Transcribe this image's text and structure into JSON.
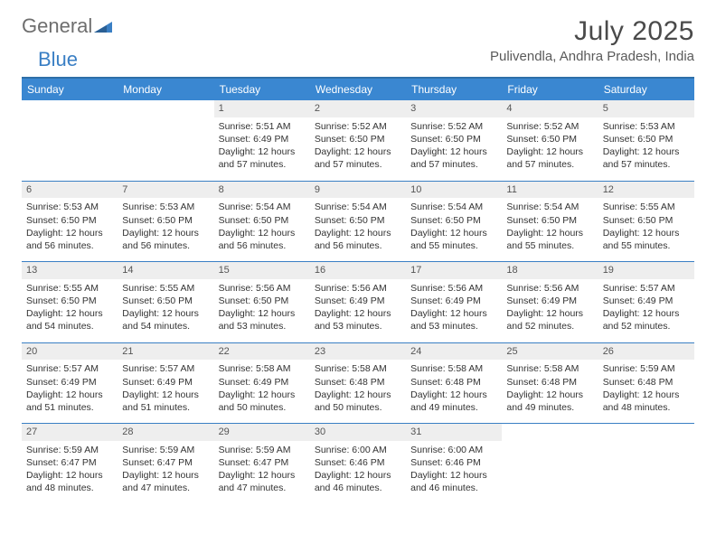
{
  "brand": {
    "word1": "General",
    "word2": "Blue"
  },
  "title": "July 2025",
  "location": "Pulivendla, Andhra Pradesh, India",
  "colors": {
    "header_bg": "#3a87d1",
    "border": "#3a7fc4",
    "daynum_bg": "#eeeeee",
    "logo_gray": "#6e6e6e",
    "logo_blue": "#3a7fc4",
    "text": "#333333"
  },
  "weekdays": [
    "Sunday",
    "Monday",
    "Tuesday",
    "Wednesday",
    "Thursday",
    "Friday",
    "Saturday"
  ],
  "weeks": [
    [
      {
        "empty": true
      },
      {
        "empty": true
      },
      {
        "n": "1",
        "sunrise": "5:51 AM",
        "sunset": "6:49 PM",
        "daylight": "12 hours and 57 minutes."
      },
      {
        "n": "2",
        "sunrise": "5:52 AM",
        "sunset": "6:50 PM",
        "daylight": "12 hours and 57 minutes."
      },
      {
        "n": "3",
        "sunrise": "5:52 AM",
        "sunset": "6:50 PM",
        "daylight": "12 hours and 57 minutes."
      },
      {
        "n": "4",
        "sunrise": "5:52 AM",
        "sunset": "6:50 PM",
        "daylight": "12 hours and 57 minutes."
      },
      {
        "n": "5",
        "sunrise": "5:53 AM",
        "sunset": "6:50 PM",
        "daylight": "12 hours and 57 minutes."
      }
    ],
    [
      {
        "n": "6",
        "sunrise": "5:53 AM",
        "sunset": "6:50 PM",
        "daylight": "12 hours and 56 minutes."
      },
      {
        "n": "7",
        "sunrise": "5:53 AM",
        "sunset": "6:50 PM",
        "daylight": "12 hours and 56 minutes."
      },
      {
        "n": "8",
        "sunrise": "5:54 AM",
        "sunset": "6:50 PM",
        "daylight": "12 hours and 56 minutes."
      },
      {
        "n": "9",
        "sunrise": "5:54 AM",
        "sunset": "6:50 PM",
        "daylight": "12 hours and 56 minutes."
      },
      {
        "n": "10",
        "sunrise": "5:54 AM",
        "sunset": "6:50 PM",
        "daylight": "12 hours and 55 minutes."
      },
      {
        "n": "11",
        "sunrise": "5:54 AM",
        "sunset": "6:50 PM",
        "daylight": "12 hours and 55 minutes."
      },
      {
        "n": "12",
        "sunrise": "5:55 AM",
        "sunset": "6:50 PM",
        "daylight": "12 hours and 55 minutes."
      }
    ],
    [
      {
        "n": "13",
        "sunrise": "5:55 AM",
        "sunset": "6:50 PM",
        "daylight": "12 hours and 54 minutes."
      },
      {
        "n": "14",
        "sunrise": "5:55 AM",
        "sunset": "6:50 PM",
        "daylight": "12 hours and 54 minutes."
      },
      {
        "n": "15",
        "sunrise": "5:56 AM",
        "sunset": "6:50 PM",
        "daylight": "12 hours and 53 minutes."
      },
      {
        "n": "16",
        "sunrise": "5:56 AM",
        "sunset": "6:49 PM",
        "daylight": "12 hours and 53 minutes."
      },
      {
        "n": "17",
        "sunrise": "5:56 AM",
        "sunset": "6:49 PM",
        "daylight": "12 hours and 53 minutes."
      },
      {
        "n": "18",
        "sunrise": "5:56 AM",
        "sunset": "6:49 PM",
        "daylight": "12 hours and 52 minutes."
      },
      {
        "n": "19",
        "sunrise": "5:57 AM",
        "sunset": "6:49 PM",
        "daylight": "12 hours and 52 minutes."
      }
    ],
    [
      {
        "n": "20",
        "sunrise": "5:57 AM",
        "sunset": "6:49 PM",
        "daylight": "12 hours and 51 minutes."
      },
      {
        "n": "21",
        "sunrise": "5:57 AM",
        "sunset": "6:49 PM",
        "daylight": "12 hours and 51 minutes."
      },
      {
        "n": "22",
        "sunrise": "5:58 AM",
        "sunset": "6:49 PM",
        "daylight": "12 hours and 50 minutes."
      },
      {
        "n": "23",
        "sunrise": "5:58 AM",
        "sunset": "6:48 PM",
        "daylight": "12 hours and 50 minutes."
      },
      {
        "n": "24",
        "sunrise": "5:58 AM",
        "sunset": "6:48 PM",
        "daylight": "12 hours and 49 minutes."
      },
      {
        "n": "25",
        "sunrise": "5:58 AM",
        "sunset": "6:48 PM",
        "daylight": "12 hours and 49 minutes."
      },
      {
        "n": "26",
        "sunrise": "5:59 AM",
        "sunset": "6:48 PM",
        "daylight": "12 hours and 48 minutes."
      }
    ],
    [
      {
        "n": "27",
        "sunrise": "5:59 AM",
        "sunset": "6:47 PM",
        "daylight": "12 hours and 48 minutes."
      },
      {
        "n": "28",
        "sunrise": "5:59 AM",
        "sunset": "6:47 PM",
        "daylight": "12 hours and 47 minutes."
      },
      {
        "n": "29",
        "sunrise": "5:59 AM",
        "sunset": "6:47 PM",
        "daylight": "12 hours and 47 minutes."
      },
      {
        "n": "30",
        "sunrise": "6:00 AM",
        "sunset": "6:46 PM",
        "daylight": "12 hours and 46 minutes."
      },
      {
        "n": "31",
        "sunrise": "6:00 AM",
        "sunset": "6:46 PM",
        "daylight": "12 hours and 46 minutes."
      },
      {
        "empty": true
      },
      {
        "empty": true
      }
    ]
  ],
  "labels": {
    "sunrise": "Sunrise: ",
    "sunset": "Sunset: ",
    "daylight": "Daylight: "
  }
}
